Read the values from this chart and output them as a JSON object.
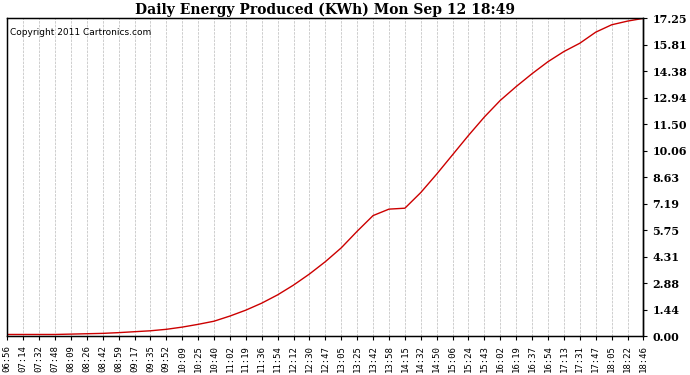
{
  "title": "Daily Energy Produced (KWh) Mon Sep 12 18:49",
  "copyright": "Copyright 2011 Cartronics.com",
  "line_color": "#cc0000",
  "bg_color": "#ffffff",
  "plot_bg_color": "#ffffff",
  "grid_color": "#aaaaaa",
  "yticks": [
    0.0,
    1.44,
    2.88,
    4.31,
    5.75,
    7.19,
    8.63,
    10.06,
    11.5,
    12.94,
    14.38,
    15.81,
    17.25
  ],
  "ymax": 17.25,
  "ymin": 0.0,
  "xtick_labels": [
    "06:56",
    "07:14",
    "07:32",
    "07:48",
    "08:09",
    "08:26",
    "08:42",
    "08:59",
    "09:17",
    "09:35",
    "09:52",
    "10:09",
    "10:25",
    "10:40",
    "11:02",
    "11:19",
    "11:36",
    "11:54",
    "12:12",
    "12:30",
    "12:47",
    "13:05",
    "13:25",
    "13:42",
    "13:58",
    "14:15",
    "14:32",
    "14:50",
    "15:06",
    "15:24",
    "15:43",
    "16:02",
    "16:19",
    "16:37",
    "16:54",
    "17:13",
    "17:31",
    "17:47",
    "18:05",
    "18:22",
    "18:46"
  ],
  "data_y": [
    0.1,
    0.1,
    0.1,
    0.1,
    0.12,
    0.14,
    0.16,
    0.2,
    0.25,
    0.3,
    0.38,
    0.5,
    0.65,
    0.82,
    1.1,
    1.42,
    1.8,
    2.25,
    2.78,
    3.38,
    4.05,
    4.8,
    5.7,
    6.55,
    6.9,
    6.95,
    7.8,
    8.8,
    9.85,
    10.9,
    11.9,
    12.8,
    13.55,
    14.25,
    14.9,
    15.45,
    15.9,
    16.5,
    16.9,
    17.1,
    17.25
  ]
}
